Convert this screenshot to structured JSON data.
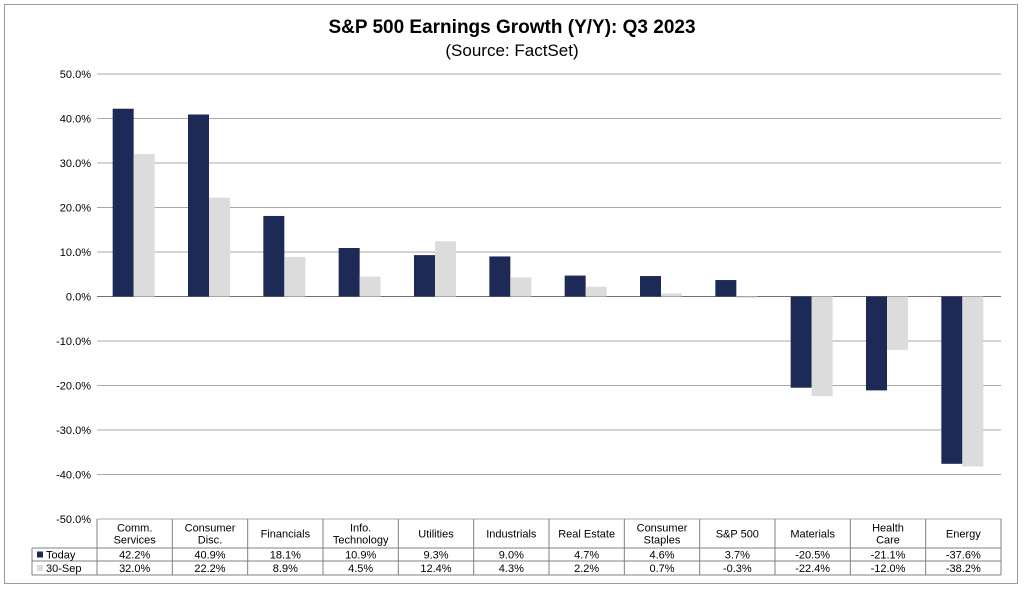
{
  "chart_data": {
    "type": "bar",
    "title": "S&P 500 Earnings Growth (Y/Y): Q3 2023",
    "subtitle": "(Source: FactSet)",
    "categories": [
      [
        "Comm.",
        "Services"
      ],
      [
        "Consumer",
        "Disc."
      ],
      [
        "Financials"
      ],
      [
        "Info.",
        "Technology"
      ],
      [
        "Utilities"
      ],
      [
        "Industrials"
      ],
      [
        "Real Estate"
      ],
      [
        "Consumer",
        "Staples"
      ],
      [
        "S&P 500"
      ],
      [
        "Materials"
      ],
      [
        "Health",
        "Care"
      ],
      [
        "Energy"
      ]
    ],
    "series": [
      {
        "name": "Today",
        "color": "#1c2a55",
        "values": [
          42.2,
          40.9,
          18.1,
          10.9,
          9.3,
          9.0,
          4.7,
          4.6,
          3.7,
          -20.5,
          -21.1,
          -37.6
        ],
        "labels": [
          "42.2%",
          "40.9%",
          "18.1%",
          "10.9%",
          "9.3%",
          "9.0%",
          "4.7%",
          "4.6%",
          "3.7%",
          "-20.5%",
          "-21.1%",
          "-37.6%"
        ]
      },
      {
        "name": "30-Sep",
        "color": "#dcdcdc",
        "values": [
          32.0,
          22.2,
          8.9,
          4.5,
          12.4,
          4.3,
          2.2,
          0.7,
          -0.3,
          -22.4,
          -12.0,
          -38.2
        ],
        "labels": [
          "32.0%",
          "22.2%",
          "8.9%",
          "4.5%",
          "12.4%",
          "4.3%",
          "2.2%",
          "0.7%",
          "-0.3%",
          "-22.4%",
          "-12.0%",
          "-38.2%"
        ]
      }
    ],
    "ylim": [
      -50,
      50
    ],
    "yticks": [
      {
        "value": 50,
        "label": "50.0%"
      },
      {
        "value": 40,
        "label": "40.0%"
      },
      {
        "value": 30,
        "label": "30.0%"
      },
      {
        "value": 20,
        "label": "20.0%"
      },
      {
        "value": 10,
        "label": "10.0%"
      },
      {
        "value": 0,
        "label": "0.0%"
      },
      {
        "value": -10,
        "label": "-10.0%"
      },
      {
        "value": -20,
        "label": "-20.0%"
      },
      {
        "value": -30,
        "label": "-30.0%"
      },
      {
        "value": -40,
        "label": "-40.0%"
      },
      {
        "value": -50,
        "label": "-50.0%"
      }
    ],
    "grid": true,
    "legend": "data-table"
  }
}
